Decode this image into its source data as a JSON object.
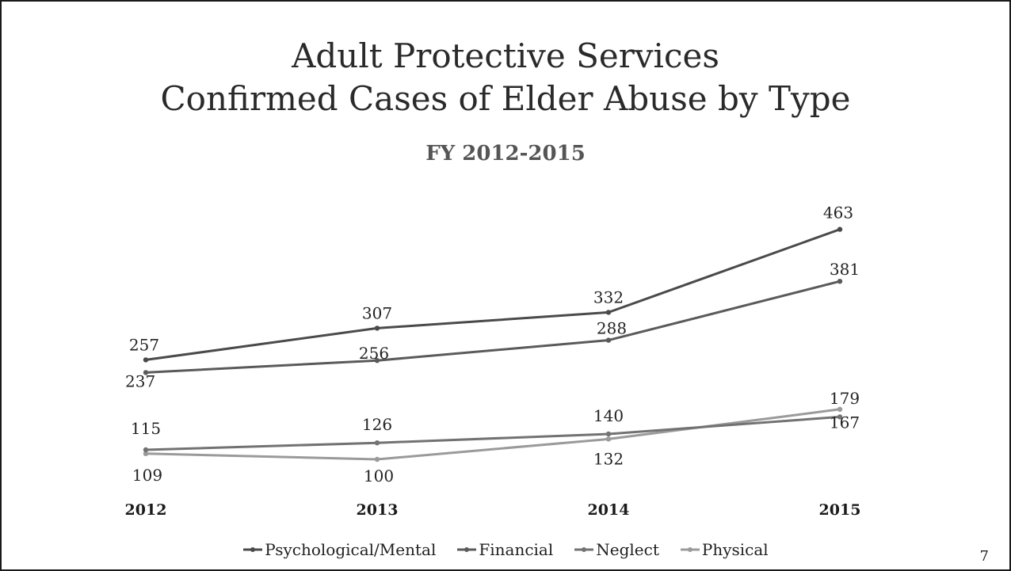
{
  "slide": {
    "title_line1": "Adult Protective Services",
    "title_line2": "Confirmed Cases of Elder Abuse by Type",
    "page_number": "7"
  },
  "chart_data": {
    "type": "line",
    "title": "FY 2012-2015",
    "categories": [
      "2012",
      "2013",
      "2014",
      "2015"
    ],
    "ylim": [
      0,
      500
    ],
    "grid": false,
    "legend_position": "bottom",
    "series": [
      {
        "name": "Psychological/Mental",
        "values": [
          257,
          307,
          332,
          463
        ],
        "color": "#4a4a4a"
      },
      {
        "name": "Financial",
        "values": [
          237,
          256,
          288,
          381
        ],
        "color": "#5a5a5a"
      },
      {
        "name": "Neglect",
        "values": [
          115,
          126,
          140,
          167
        ],
        "color": "#727272"
      },
      {
        "name": "Physical",
        "values": [
          109,
          100,
          132,
          179
        ],
        "color": "#9a9a9a"
      }
    ]
  }
}
